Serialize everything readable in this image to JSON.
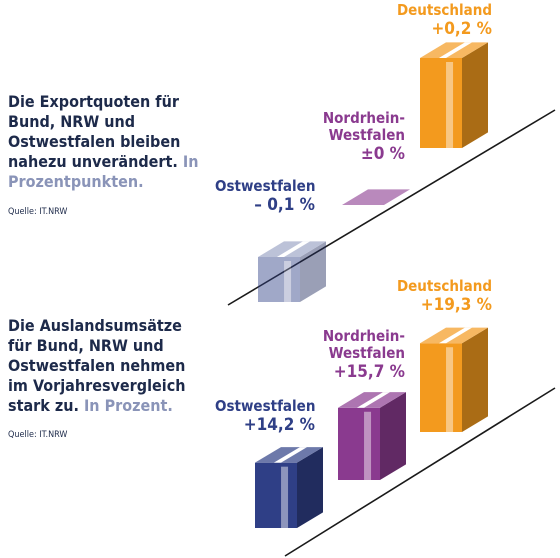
{
  "chart_data": [
    {
      "type": "box",
      "title": "Die Exportquoten für Bund, NRW und Ostwestfalen bleiben nahezu unverändert.",
      "unit_note": "In Prozentpunkten.",
      "source": "Quelle: IT.NRW",
      "categories": [
        "Ostwestfalen",
        "Nordrhein-Westfalen",
        "Deutschland"
      ],
      "values": [
        -0.1,
        0,
        0.2
      ],
      "value_labels": [
        "– 0,1 %",
        "±0 %",
        "+0,2 %"
      ],
      "colors": [
        "#2f3f86",
        "#8a3a8f",
        "#f39a1e"
      ]
    },
    {
      "type": "box",
      "title": "Die Auslandsumsätze für Bund, NRW und Ostwestfalen nehmen im Vorjahresvergleich stark zu.",
      "unit_note": "In Prozent.",
      "source": "Quelle: IT.NRW",
      "categories": [
        "Ostwestfalen",
        "Nordrhein-Westfalen",
        "Deutschland"
      ],
      "values": [
        14.2,
        15.7,
        19.3
      ],
      "value_labels": [
        "+14,2 %",
        "+15,7 %",
        "+19,3 %"
      ],
      "colors": [
        "#2f3f86",
        "#8a3a8f",
        "#f39a1e"
      ]
    }
  ]
}
